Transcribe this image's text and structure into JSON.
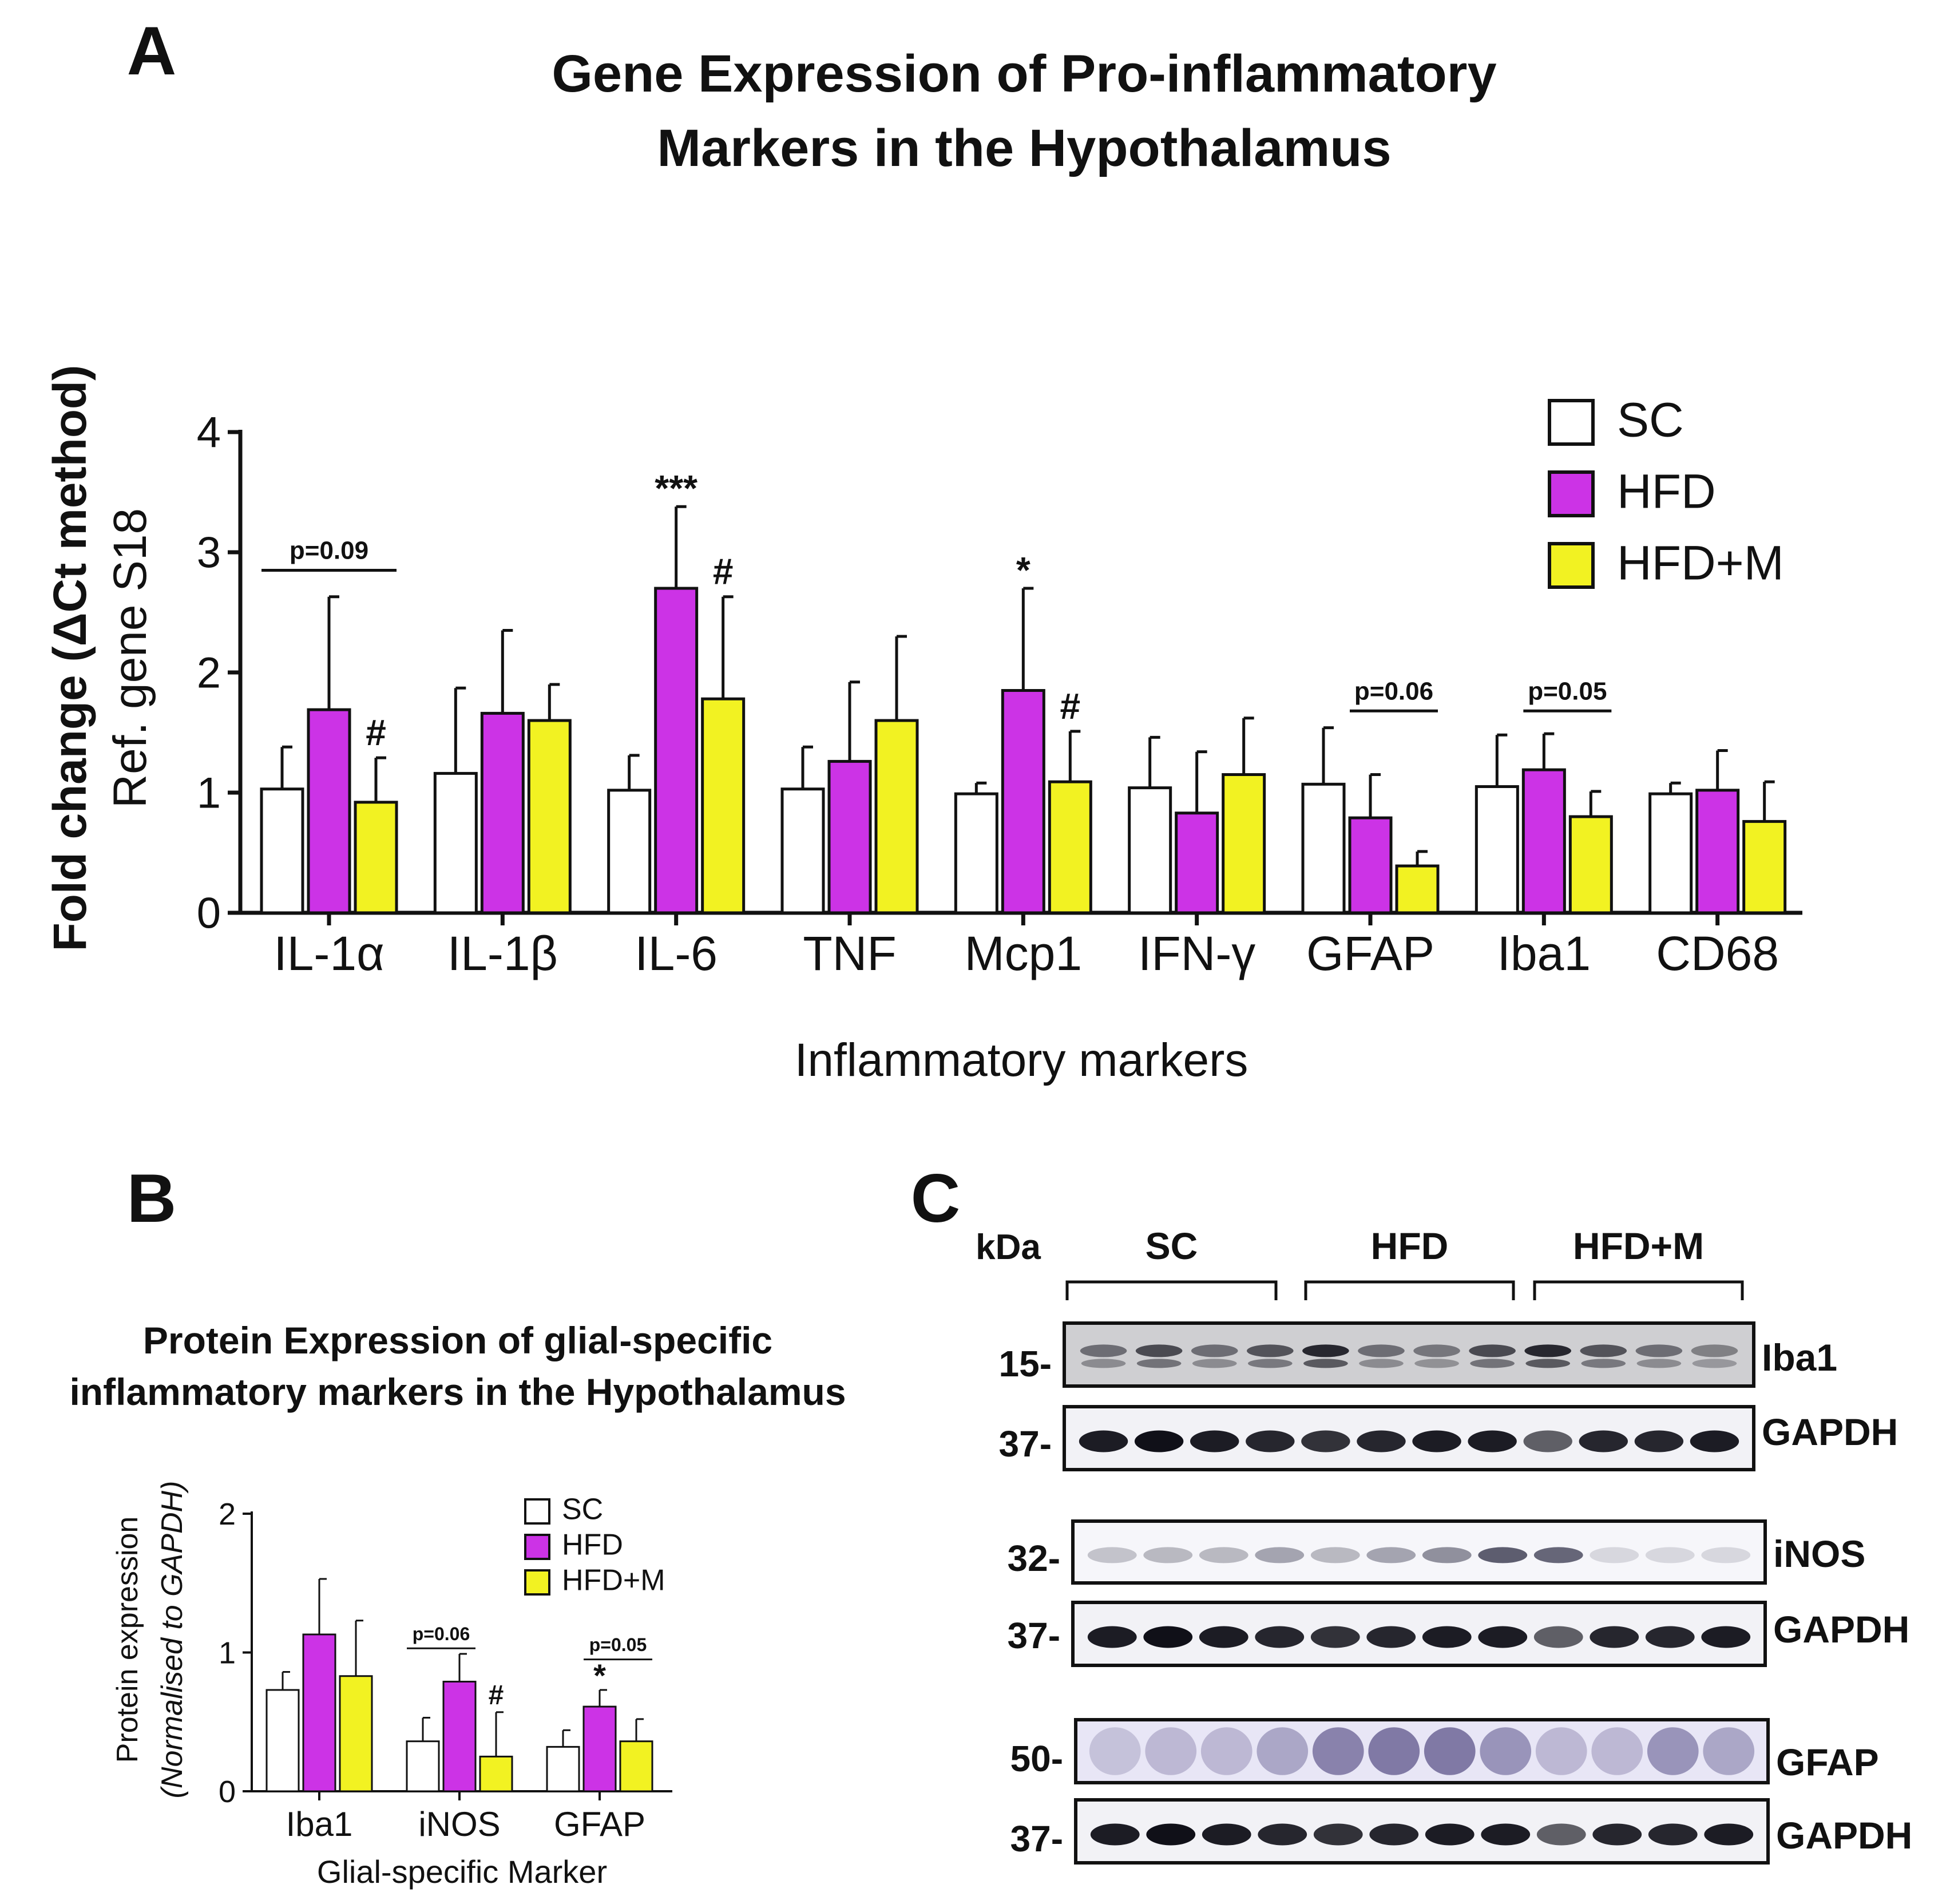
{
  "panel_a": {
    "letter": "A",
    "title_line1": "Gene Expression of Pro-inflammatory",
    "title_line2": "Markers in the Hypothalamus"
  },
  "panel_b": {
    "letter": "B",
    "title_line1": "Protein Expression of glial-specific",
    "title_line2": "inflammatory markers in the Hypothalamus"
  },
  "panel_c": {
    "letter": "C",
    "kda_label": "kDa",
    "groups": [
      "SC",
      "HFD",
      "HFD+M"
    ],
    "blots": [
      {
        "marker": "15-",
        "label": "Iba1",
        "kind": "iba1"
      },
      {
        "marker": "37-",
        "label": "GAPDH",
        "kind": "gapdh"
      },
      {
        "marker": "32-",
        "label": "iNOS",
        "kind": "inos"
      },
      {
        "marker": "37-",
        "label": "GAPDH",
        "kind": "gapdh"
      },
      {
        "marker": "50-",
        "label": "GFAP",
        "kind": "gfap"
      },
      {
        "marker": "37-",
        "label": "GAPDH",
        "kind": "gapdh"
      }
    ]
  },
  "colors": {
    "SC": "#ffffff",
    "HFD": "#cc33e6",
    "HFD+M": "#f2f222"
  },
  "chart_data": [
    {
      "type": "bar",
      "title": "Gene Expression of Pro-inflammatory Markers in the Hypothalamus",
      "xlabel": "Inflammatory markers",
      "ylabel_line1": "Fold change (ΔCt  method)",
      "ylabel_line2": "Ref. gene S18",
      "ylim": [
        0,
        4
      ],
      "yticks": [
        "0",
        "1",
        "2",
        "3",
        "4"
      ],
      "categories": [
        "IL-1α",
        "IL-1β",
        "IL-6",
        "TNF",
        "Mcp1",
        "IFN-γ",
        "GFAP",
        "Iba1",
        "CD68"
      ],
      "series": [
        {
          "name": "SC",
          "values": [
            1.03,
            1.16,
            1.02,
            1.03,
            0.99,
            1.04,
            1.07,
            1.05,
            0.99
          ],
          "errors": [
            0.35,
            0.71,
            0.29,
            0.35,
            0.09,
            0.42,
            0.47,
            0.43,
            0.09
          ]
        },
        {
          "name": "HFD",
          "values": [
            1.69,
            1.66,
            2.7,
            1.26,
            1.85,
            0.83,
            0.79,
            1.19,
            1.02
          ],
          "errors": [
            0.94,
            0.69,
            0.68,
            0.66,
            0.85,
            0.51,
            0.36,
            0.3,
            0.33
          ]
        },
        {
          "name": "HFD+M",
          "values": [
            0.92,
            1.6,
            1.78,
            1.6,
            1.09,
            1.15,
            0.39,
            0.8,
            0.76
          ],
          "errors": [
            0.37,
            0.3,
            0.85,
            0.7,
            0.42,
            0.47,
            0.12,
            0.21,
            0.33
          ]
        }
      ],
      "legend": [
        "SC",
        "HFD",
        "HFD+M"
      ],
      "annotations": [
        {
          "text": "p=0.09",
          "category": "IL-1α",
          "from": "SC",
          "to": "HFD+M",
          "y": 2.85
        },
        {
          "text": "#",
          "category": "IL-1α",
          "series": "HFD+M"
        },
        {
          "text": "***",
          "category": "IL-6",
          "series": "HFD"
        },
        {
          "text": "#",
          "category": "IL-6",
          "series": "HFD+M"
        },
        {
          "text": "*",
          "category": "Mcp1",
          "series": "HFD"
        },
        {
          "text": "#",
          "category": "Mcp1",
          "series": "HFD+M"
        },
        {
          "text": "p=0.06",
          "category": "GFAP",
          "from": "HFD",
          "to": "HFD+M",
          "y": 1.68
        },
        {
          "text": "p=0.05",
          "category": "Iba1",
          "from": "HFD",
          "to": "HFD+M",
          "y": 1.68
        }
      ]
    },
    {
      "type": "bar",
      "title": "Protein Expression of glial-specific inflammatory markers in the Hypothalamus",
      "xlabel": "Glial-specific Marker",
      "ylabel_line1": "Protein expression",
      "ylabel_line2": "(Normalised to GAPDH)",
      "ylim": [
        0,
        2
      ],
      "yticks": [
        "0",
        "1",
        "2"
      ],
      "categories": [
        "Iba1",
        "iNOS",
        "GFAP"
      ],
      "series": [
        {
          "name": "SC",
          "values": [
            0.73,
            0.36,
            0.32
          ],
          "errors": [
            0.13,
            0.17,
            0.12
          ]
        },
        {
          "name": "HFD",
          "values": [
            1.13,
            0.79,
            0.61
          ],
          "errors": [
            0.4,
            0.2,
            0.12
          ]
        },
        {
          "name": "HFD+M",
          "values": [
            0.83,
            0.25,
            0.36
          ],
          "errors": [
            0.4,
            0.32,
            0.16
          ]
        }
      ],
      "legend": [
        "SC",
        "HFD",
        "HFD+M"
      ],
      "annotations": [
        {
          "text": "p=0.06",
          "category": "iNOS",
          "from": "SC",
          "to": "HFD",
          "y": 1.03
        },
        {
          "text": "#",
          "category": "iNOS",
          "series": "HFD+M"
        },
        {
          "text": "*",
          "category": "GFAP",
          "series": "HFD"
        },
        {
          "text": "p=0.05",
          "category": "GFAP",
          "from": "HFD",
          "to": "HFD+M",
          "y": 0.95
        }
      ]
    }
  ]
}
